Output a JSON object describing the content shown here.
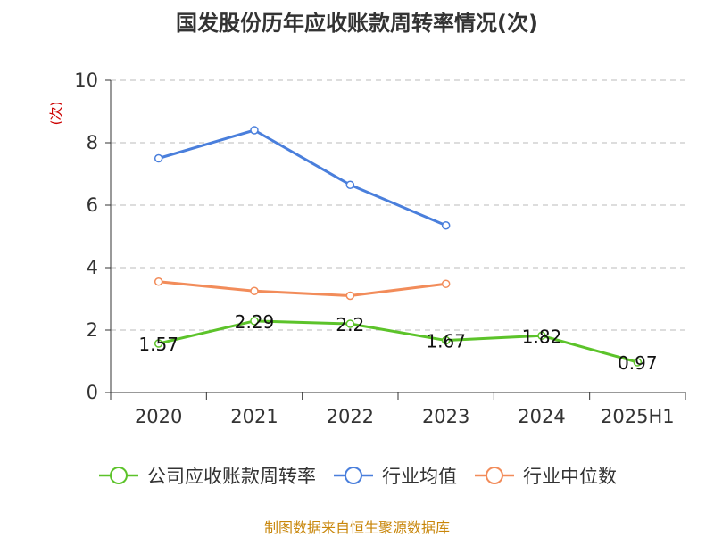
{
  "title": "国发股份历年应收账款周转率情况(次)",
  "unit_label": "(次)",
  "source": "制图数据来自恒生聚源数据库",
  "chart_data": {
    "type": "line",
    "title": "国发股份历年应收账款周转率情况(次)",
    "ylabel": "(次)",
    "xlabel": "",
    "categories": [
      "2020",
      "2021",
      "2022",
      "2023",
      "2024",
      "2025H1"
    ],
    "ylim": [
      0,
      10
    ],
    "yticks": [
      0,
      2,
      4,
      6,
      8,
      10
    ],
    "grid": true,
    "legend_position": "bottom",
    "series": [
      {
        "name": "公司应收账款周转率",
        "color": "#5cc32a",
        "values": [
          1.57,
          2.29,
          2.2,
          1.67,
          1.82,
          0.97
        ],
        "labels": [
          "1.57",
          "2.29",
          "2.2",
          "1.67",
          "1.82",
          "0.97"
        ],
        "show_labels": true
      },
      {
        "name": "行业均值",
        "color": "#4a7fdc",
        "values": [
          7.5,
          8.4,
          6.65,
          5.35,
          null,
          null
        ],
        "show_labels": false
      },
      {
        "name": "行业中位数",
        "color": "#f28c5a",
        "values": [
          3.55,
          3.25,
          3.1,
          3.48,
          null,
          null
        ],
        "show_labels": false
      }
    ]
  }
}
